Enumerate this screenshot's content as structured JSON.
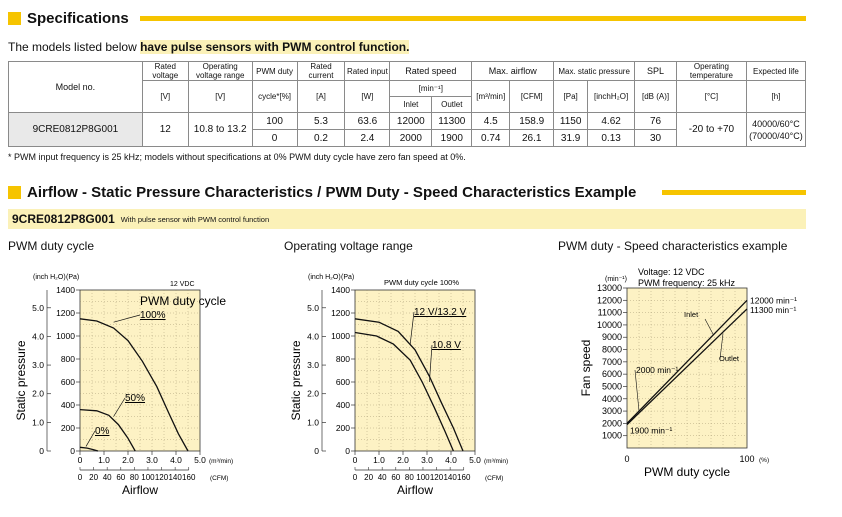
{
  "specs": {
    "title": "Specifications",
    "intro_pre": "The models listed below ",
    "intro_hl": "have pulse sensors with PWM control function.",
    "headers": {
      "model": "Model no.",
      "rated_voltage": [
        "Rated voltage",
        "[V]"
      ],
      "op_voltage": [
        "Operating voltage range",
        "[V]"
      ],
      "pwm_duty": [
        "PWM duty",
        "cycle*[%]"
      ],
      "rated_current": [
        "Rated current",
        "[A]"
      ],
      "rated_input": [
        "Rated input",
        "[W]"
      ],
      "rated_speed": [
        "Rated speed",
        "[min⁻¹]"
      ],
      "inlet": "Inlet",
      "outlet": "Outlet",
      "airflow": [
        "Max. airflow",
        "[m³/min]",
        "[CFM]"
      ],
      "static": [
        "Max. static pressure",
        "[Pa]",
        "[inchH₂O]"
      ],
      "spl": [
        "SPL",
        "[dB (A)]"
      ],
      "op_temp": [
        "Operating temperature",
        "[°C]"
      ],
      "life": [
        "Expected life",
        "[h]"
      ]
    },
    "model": "9CRE0812P8G001",
    "rated_voltage": "12",
    "op_voltage": "10.8 to 13.2",
    "op_temp": "-20 to +70",
    "life": [
      "40000/60°C",
      "(70000/40°C)"
    ],
    "rows": [
      {
        "pwm": "100",
        "current": "5.3",
        "input": "63.6",
        "inlet": "12000",
        "outlet": "11300",
        "m3": "4.5",
        "cfm": "158.9",
        "pa": "1150",
        "inch": "4.62",
        "spl": "76"
      },
      {
        "pwm": "0",
        "current": "0.2",
        "input": "2.4",
        "inlet": "2000",
        "outlet": "1900",
        "m3": "0.74",
        "cfm": "26.1",
        "pa": "31.9",
        "inch": "0.13",
        "spl": "30"
      }
    ],
    "footnote": "* PWM input frequency is 25 kHz; models without specifications at 0% PWM duty cycle have zero fan speed at 0%."
  },
  "airflow_section": {
    "title": "Airflow - Static Pressure Characteristics / PWM Duty - Speed Characteristics Example",
    "model": "9CRE0812P8G001",
    "model_desc": "With pulse sensor with PWM control function"
  },
  "colors": {
    "accent": "#f6c400",
    "band": "#fbf1b8",
    "plot_bg": "#fdf2c4"
  },
  "chart_data": [
    {
      "type": "line",
      "title": "PWM duty cycle",
      "legend_title": "PWM duty cycle",
      "corner_note": "12 VDC",
      "xlabel": "Airflow",
      "ylabel": "Static pressure",
      "x_unit": "(m³/min)",
      "x2_unit": "(CFM)",
      "y_unit": "(Pa)",
      "y2_unit": "(inch H₂O)",
      "xlim": [
        0,
        5.0
      ],
      "ylim": [
        0,
        1400
      ],
      "x_ticks": [
        "0",
        "1.0",
        "2.0",
        "3.0",
        "4.0",
        "5.0"
      ],
      "x2_ticks": [
        "0",
        "20",
        "40",
        "60",
        "80",
        "100",
        "120",
        "140",
        "160"
      ],
      "y_ticks": [
        "1400",
        "1200",
        "1000",
        "800",
        "600",
        "400",
        "200",
        "0"
      ],
      "y2_ticks": [
        "5.0",
        "4.0",
        "3.0",
        "2.0",
        "1.0",
        "0"
      ],
      "series": [
        {
          "name": "100%",
          "x": [
            0,
            0.7,
            1.4,
            2.0,
            2.6,
            3.2,
            3.7,
            4.1,
            4.5
          ],
          "y": [
            1150,
            1130,
            1070,
            960,
            780,
            560,
            330,
            150,
            0
          ]
        },
        {
          "name": "50%",
          "x": [
            0,
            0.7,
            1.2,
            1.6,
            2.0,
            2.3
          ],
          "y": [
            360,
            350,
            310,
            230,
            110,
            0
          ]
        },
        {
          "name": "0%",
          "x": [
            0,
            0.3,
            0.55,
            0.75
          ],
          "y": [
            32,
            25,
            12,
            0
          ]
        }
      ]
    },
    {
      "type": "line",
      "title": "Operating voltage range",
      "legend_title": "PWM duty cycle 100%",
      "xlabel": "Airflow",
      "ylabel": "Static pressure",
      "x_unit": "(m³/min)",
      "x2_unit": "(CFM)",
      "y_unit": "(Pa)",
      "y2_unit": "(inch H₂O)",
      "xlim": [
        0,
        5.0
      ],
      "ylim": [
        0,
        1400
      ],
      "x_ticks": [
        "0",
        "1.0",
        "2.0",
        "3.0",
        "4.0",
        "5.0"
      ],
      "x2_ticks": [
        "0",
        "20",
        "40",
        "60",
        "80",
        "100",
        "120",
        "140",
        "160"
      ],
      "y_ticks": [
        "1400",
        "1200",
        "1000",
        "800",
        "600",
        "400",
        "200",
        "0"
      ],
      "y2_ticks": [
        "5.0",
        "4.0",
        "3.0",
        "2.0",
        "1.0",
        "0"
      ],
      "series": [
        {
          "name": "12 V/13.2 V",
          "x": [
            0,
            1.0,
            1.8,
            2.5,
            3.1,
            3.6,
            4.1,
            4.5
          ],
          "y": [
            1150,
            1120,
            1040,
            880,
            650,
            420,
            200,
            0
          ]
        },
        {
          "name": "10.8 V",
          "x": [
            0,
            0.9,
            1.6,
            2.3,
            2.8,
            3.3,
            3.75,
            4.1
          ],
          "y": [
            1030,
            1000,
            930,
            790,
            600,
            380,
            170,
            0
          ]
        }
      ]
    },
    {
      "type": "line",
      "title": "PWM duty - Speed characteristics example",
      "note_voltage": "Voltage: 12 VDC",
      "note_freq": "PWM frequency: 25 kHz",
      "xlabel": "PWM duty cycle",
      "ylabel": "Fan speed",
      "x_unit": "(%)",
      "y_unit": "(min⁻¹)",
      "xlim": [
        0,
        100
      ],
      "ylim": [
        0,
        13000
      ],
      "x_ticks": [
        "0",
        "100"
      ],
      "y_ticks": [
        "13000",
        "12000",
        "11000",
        "10000",
        "9000",
        "8000",
        "7000",
        "6000",
        "5000",
        "4000",
        "3000",
        "2000",
        "1000"
      ],
      "series": [
        {
          "name": "Inlet",
          "x": [
            0,
            100
          ],
          "y": [
            2000,
            12000
          ]
        },
        {
          "name": "Outlet",
          "x": [
            0,
            100
          ],
          "y": [
            1900,
            11300
          ]
        }
      ],
      "annotations": [
        "12000 min⁻¹",
        "11300 min⁻¹",
        "2000 min⁻¹",
        "1900 min⁻¹"
      ]
    }
  ]
}
